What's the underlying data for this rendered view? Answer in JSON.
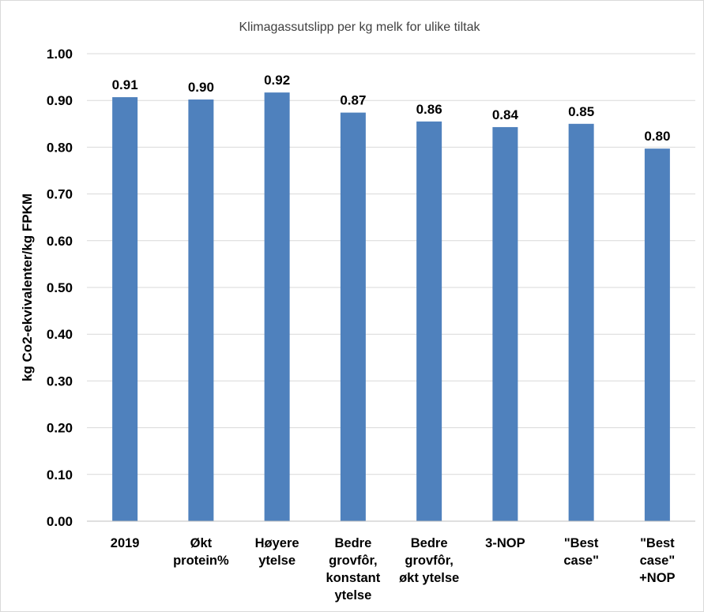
{
  "chart_data": {
    "type": "bar",
    "title": "Klimagassutslipp per kg melk for ulike tiltak",
    "ylabel": "kg Co2-ekvivalenter/kg FPKM",
    "xlabel": "",
    "ylim": [
      0,
      1.0
    ],
    "yticks": [
      "0.00",
      "0.10",
      "0.20",
      "0.30",
      "0.40",
      "0.50",
      "0.60",
      "0.70",
      "0.80",
      "0.90",
      "1.00"
    ],
    "grid": true,
    "legend": "none",
    "bar_color": "#4f81bd",
    "categories": [
      [
        "2019"
      ],
      [
        "Økt",
        "protein%"
      ],
      [
        "Høyere",
        "ytelse"
      ],
      [
        "Bedre",
        "grovfôr,",
        "konstant",
        "ytelse"
      ],
      [
        "Bedre",
        "grovfôr,",
        "økt ytelse"
      ],
      [
        "3-NOP"
      ],
      [
        "\"Best",
        "case\""
      ],
      [
        "\"Best",
        "case\"",
        "+NOP"
      ]
    ],
    "values": [
      0.907,
      0.902,
      0.917,
      0.874,
      0.855,
      0.843,
      0.85,
      0.797
    ],
    "data_labels": [
      "0.91",
      "0.90",
      "0.92",
      "0.87",
      "0.86",
      "0.84",
      "0.85",
      "0.80"
    ]
  }
}
